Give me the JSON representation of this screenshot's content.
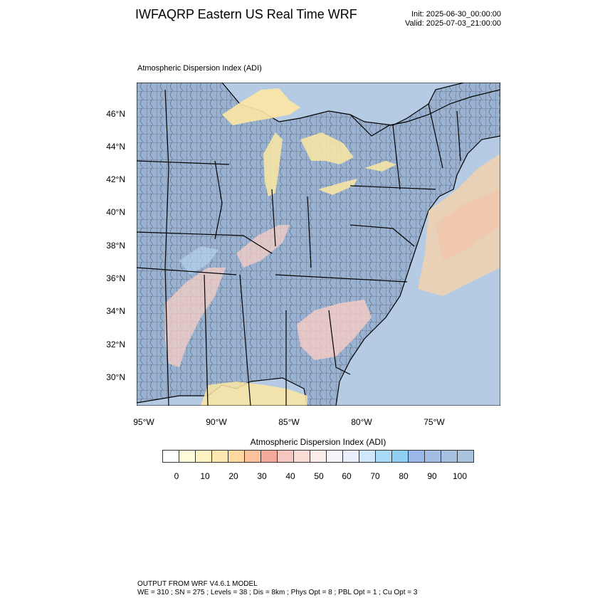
{
  "header": {
    "title": "IWFAQRP Eastern US Real Time WRF",
    "init": "Init: 2025-06-30_00:00:00",
    "valid": "Valid: 2025-07-03_21:00:00"
  },
  "plot": {
    "subtitle": "Atmospheric Dispersion Index   (ADI)",
    "lat_labels": [
      "46°N",
      "44°N",
      "42°N",
      "40°N",
      "38°N",
      "36°N",
      "34°N",
      "32°N",
      "30°N"
    ],
    "lon_labels": [
      "95°W",
      "90°W",
      "85°W",
      "80°W",
      "75°W"
    ]
  },
  "colorbar": {
    "title": "Atmospheric Dispersion Index  (ADI)",
    "labels": [
      "0",
      "10",
      "20",
      "30",
      "40",
      "50",
      "60",
      "70",
      "80",
      "90",
      "100"
    ],
    "colors": [
      "#ffffff",
      "#fffdd8",
      "#fff3c4",
      "#ffe8b0",
      "#ffd9a0",
      "#fcc09a",
      "#f4a89a",
      "#f6c6c0",
      "#fadbd6",
      "#fbecea",
      "#f6f3fb",
      "#e8eefb",
      "#cfe8fb",
      "#a8dcf6",
      "#8ecff3",
      "#9ab9ea",
      "#a3bde3",
      "#a6bfe0",
      "#a9c2de"
    ]
  },
  "footer": {
    "line1": "OUTPUT FROM WRF V4.6.1 MODEL",
    "line2": "WE = 310 ; SN = 275 ; Levels = 38 ; Dis = 8km ; Phys Opt = 8 ; PBL Opt = 1 ; Cu Opt = 3"
  },
  "colors": {
    "water": "#b4cbe3",
    "land_high": "#9ab2d2",
    "low_yellow": "#fde7a3",
    "mid_pink": "#f7cdc4",
    "mid_blue": "#bcd9f4"
  }
}
